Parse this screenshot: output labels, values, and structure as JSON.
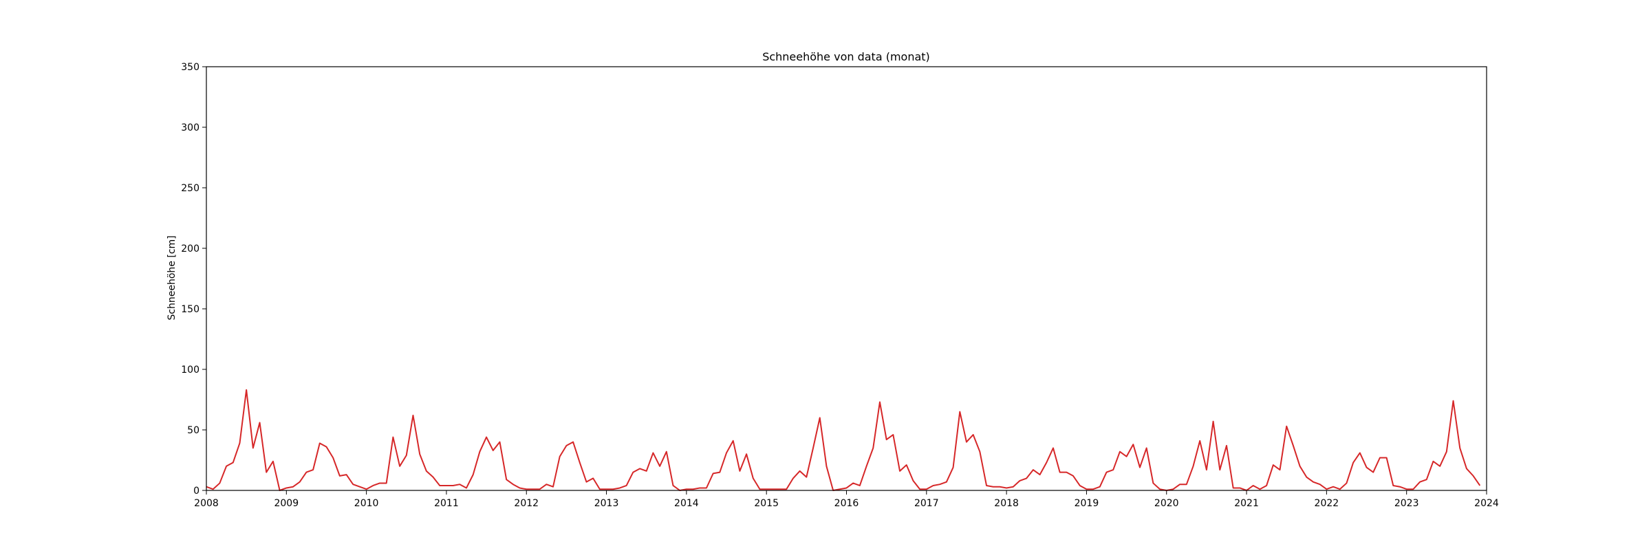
{
  "chart_data": {
    "type": "line",
    "title": "Schneehöhe von data (monat)",
    "xlabel": "",
    "ylabel": "Schneehöhe [cm]",
    "xlim": [
      2008,
      2024
    ],
    "ylim": [
      0,
      350
    ],
    "xticks": [
      "2008",
      "2009",
      "2010",
      "2011",
      "2012",
      "2013",
      "2014",
      "2015",
      "2016",
      "2017",
      "2018",
      "2019",
      "2020",
      "2021",
      "2022",
      "2023",
      "2024"
    ],
    "yticks": [
      0,
      50,
      100,
      150,
      200,
      250,
      300,
      350
    ],
    "grid": false,
    "legend": "none",
    "series": [
      {
        "color": "#d62728",
        "x_start": "2008-01",
        "frequency": "monthly",
        "values": [
          3,
          1,
          6,
          20,
          23,
          39,
          83,
          35,
          56,
          15,
          24,
          0,
          2,
          3,
          7,
          15,
          17,
          39,
          36,
          27,
          12,
          13,
          5,
          3,
          1,
          4,
          6,
          6,
          44,
          20,
          29,
          62,
          30,
          16,
          11,
          4,
          4,
          4,
          5,
          2,
          13,
          32,
          44,
          33,
          40,
          9,
          5,
          2,
          1,
          1,
          1,
          5,
          3,
          28,
          37,
          40,
          23,
          7,
          10,
          1,
          1,
          1,
          2,
          4,
          15,
          18,
          16,
          31,
          20,
          32,
          4,
          0,
          1,
          1,
          2,
          2,
          14,
          15,
          31,
          41,
          16,
          30,
          10,
          1,
          1,
          1,
          1,
          1,
          10,
          16,
          11,
          35,
          60,
          20,
          0,
          1,
          2,
          6,
          4,
          20,
          35,
          73,
          42,
          46,
          16,
          21,
          8,
          1,
          1,
          4,
          5,
          7,
          19,
          65,
          40,
          46,
          32,
          4,
          3,
          3,
          2,
          3,
          8,
          10,
          17,
          13,
          23,
          35,
          15,
          15,
          12,
          4,
          1,
          1,
          3,
          15,
          17,
          32,
          28,
          38,
          19,
          35,
          6,
          1,
          0,
          1,
          5,
          5,
          20,
          41,
          17,
          57,
          17,
          37,
          2,
          2,
          0,
          4,
          1,
          4,
          21,
          17,
          53,
          37,
          20,
          11,
          7,
          5,
          1,
          3,
          1,
          6,
          23,
          31,
          19,
          15,
          27,
          27,
          4,
          3,
          1,
          1,
          7,
          9,
          24,
          20,
          32,
          74,
          35,
          18,
          12,
          4
        ]
      }
    ]
  }
}
